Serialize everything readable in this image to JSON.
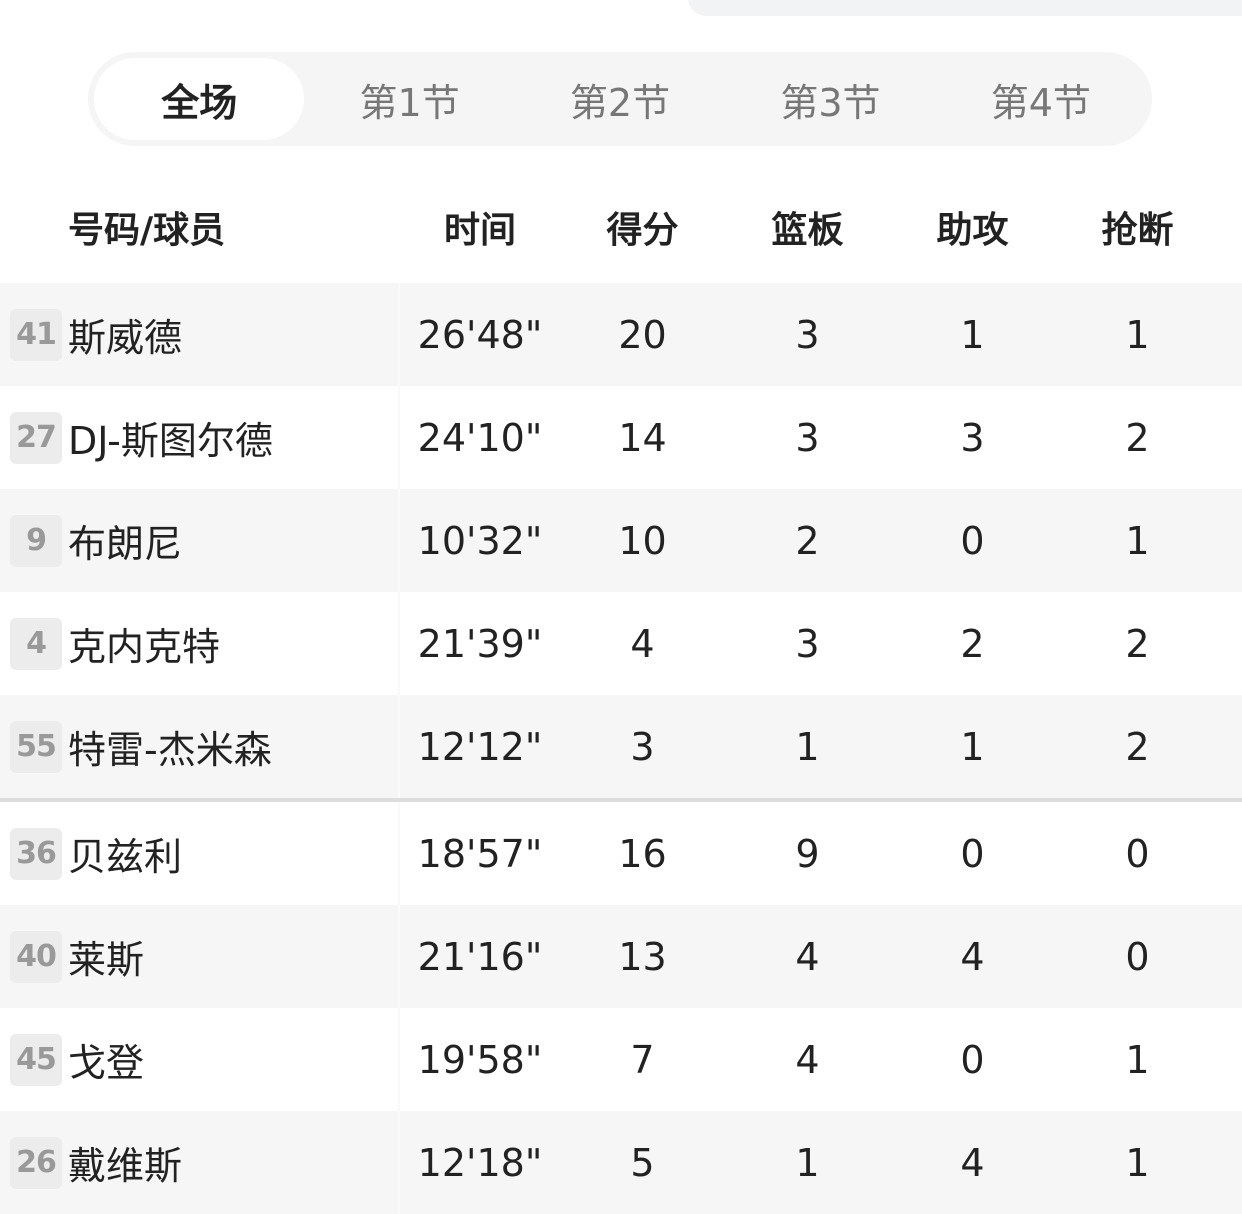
{
  "tabs": [
    "全场",
    "第1节",
    "第2节",
    "第3节",
    "第4节"
  ],
  "active_tab": 0,
  "columns": [
    "号码/球员",
    "时间",
    "得分",
    "篮板",
    "助攻",
    "抢断"
  ],
  "starters": [
    {
      "number": "41",
      "name": "斯威德",
      "time": "26'48\"",
      "pts": "20",
      "reb": "3",
      "ast": "1",
      "stl": "1"
    },
    {
      "number": "27",
      "name": "DJ-斯图尔德",
      "time": "24'10\"",
      "pts": "14",
      "reb": "3",
      "ast": "3",
      "stl": "2"
    },
    {
      "number": "9",
      "name": "布朗尼",
      "time": "10'32\"",
      "pts": "10",
      "reb": "2",
      "ast": "0",
      "stl": "1"
    },
    {
      "number": "4",
      "name": "克内克特",
      "time": "21'39\"",
      "pts": "4",
      "reb": "3",
      "ast": "2",
      "stl": "2"
    },
    {
      "number": "55",
      "name": "特雷-杰米森",
      "time": "12'12\"",
      "pts": "3",
      "reb": "1",
      "ast": "1",
      "stl": "2"
    }
  ],
  "bench": [
    {
      "number": "36",
      "name": "贝兹利",
      "time": "18'57\"",
      "pts": "16",
      "reb": "9",
      "ast": "0",
      "stl": "0"
    },
    {
      "number": "40",
      "name": "莱斯",
      "time": "21'16\"",
      "pts": "13",
      "reb": "4",
      "ast": "4",
      "stl": "0"
    },
    {
      "number": "45",
      "name": "戈登",
      "time": "19'58\"",
      "pts": "7",
      "reb": "4",
      "ast": "0",
      "stl": "1"
    },
    {
      "number": "26",
      "name": "戴维斯",
      "time": "12'18\"",
      "pts": "5",
      "reb": "1",
      "ast": "4",
      "stl": "1"
    }
  ]
}
